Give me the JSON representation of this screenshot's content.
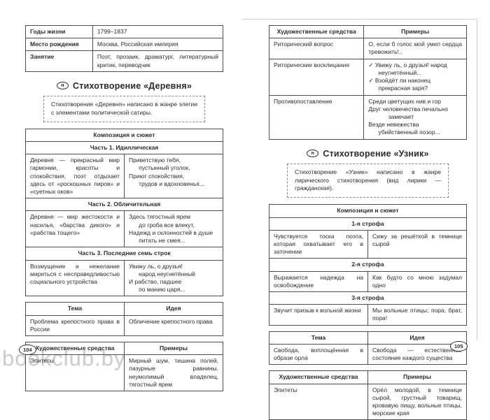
{
  "watermark": "bookclub.by",
  "left_page": {
    "page_number": "104",
    "info_table": {
      "rows": [
        {
          "label": "Годы жизни",
          "value": "1799–1837"
        },
        {
          "label": "Место рождения",
          "value": "Москва, Российская империя"
        },
        {
          "label": "Занятие",
          "value": "Поэт, прозаик, драматург, литературный критик, переводчик"
        }
      ]
    },
    "section": {
      "badge": "н",
      "title": "Стихотворение «Деревня»",
      "note": "Стихотворение «Деревня» написано в жанре элегии с элементами политической сатиры."
    },
    "composition": {
      "header": "Композиция и сюжет",
      "parts": [
        {
          "subheader": "Часть 1. Идиллическая",
          "description": "Деревня — прекрасный мир гармонии, красоты и спокойствия, поэт отдыхает здесь от «роскошных пиров» и «суетных оков»",
          "quote": "Приветствую тебя,\n      пустынный уголок,\nПриют спокойствия,\n      трудов и вдохновенья..."
        },
        {
          "subheader": "Часть 2. Обличительная",
          "description": "Деревня — мир жестокости и насилья, «барства дикого» и «рабства тощего»",
          "quote": "Здесь тягостный ярем\n      до гроба все влекут,\nНадежд и склонностей в душе\n      питать не смея..."
        },
        {
          "subheader": "Часть 3. Последние семь строк",
          "description": "Возмущение и нежелание мириться с несправедливостью социального устройства",
          "quote": "Увижу ль, о друзья!\n      народ неугнетённый\nИ рабство, падшее\n      по манию царя..."
        }
      ]
    },
    "theme_table": {
      "col_theme": "Тема",
      "col_idea": "Идея",
      "theme": "Проблема крепостного права в России",
      "idea": "Обличение крепостного права"
    },
    "means_table": {
      "col_means": "Художественные средства",
      "col_examples": "Примеры",
      "rows": [
        {
          "name": "Эпитеты",
          "example": "Мирный шум, тишина полей, лазурные равнины, неумолимый владелец, тягостный ярем"
        }
      ]
    }
  },
  "right_page": {
    "page_number": "105",
    "means_table_top": {
      "col_means": "Художественные средства",
      "col_examples": "Примеры",
      "rows": [
        {
          "name": "Риторический вопрос",
          "example": "О, если б голос мой умел сердца тревожить!.."
        },
        {
          "name": "Риторические восклицания",
          "example": "✓ Увижу ль, о друзья! народ\n      неугнетённый...\n✓ Взойдёт ли наконец\n      прекрасная заря?"
        },
        {
          "name": "Противопоставление",
          "example": "Среди цветущих нив и гор\nДруг человечества печально\n            замечает\nВезде невежества\n      убийственный позор..."
        }
      ]
    },
    "section": {
      "badge": "н",
      "title": "Стихотворение «Узник»",
      "note": "Стихотворение «Узник» написано в жанре лирического стихотворения (вид лирики — гражданская)."
    },
    "composition": {
      "header": "Композиция и сюжет",
      "parts": [
        {
          "subheader": "1-я строфа",
          "description": "Чувствуется тоска поэта, которая охватывает его в заточении",
          "quote": "Сижу за решёткой в темнице сырой"
        },
        {
          "subheader": "2-я строфа",
          "description": "Выражается надежда на освобождение",
          "quote": "Как будто со мною задумал одно"
        },
        {
          "subheader": "3-я строфа",
          "description": "Звучит призыв к вольной жизни",
          "quote": "Мы вольные птицы; пора, брат, пора!"
        }
      ]
    },
    "theme_table": {
      "col_theme": "Тема",
      "col_idea": "Идея",
      "theme": "Свобода, воплощённая в образе орла",
      "idea": "Свобода — естественное состояние каждого существа"
    },
    "means_table": {
      "col_means": "Художественные средства",
      "col_examples": "Примеры",
      "rows": [
        {
          "name": "Эпитеты",
          "example": "Орёл молодой, в темнице сырой, грустный товарищ, кровавую пищу, вольные птицы, морские края"
        }
      ]
    }
  }
}
